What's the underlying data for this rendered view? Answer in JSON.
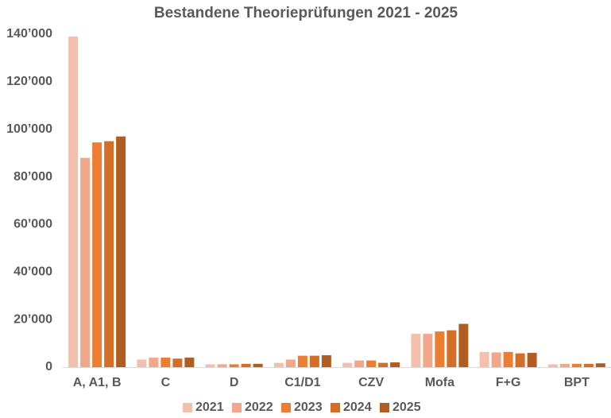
{
  "chart_data": {
    "type": "bar",
    "title": "Bestandene Theorieprüfungen 2021 - 2025",
    "categories": [
      "A, A1, B",
      "C",
      "D",
      "C1/D1",
      "CZV",
      "Mofa",
      "F+G",
      "BPT"
    ],
    "series": [
      {
        "name": "2021",
        "color": "#f4c0ae",
        "values": [
          139000,
          3200,
          1200,
          1800,
          1800,
          14000,
          6400,
          1200
        ]
      },
      {
        "name": "2022",
        "color": "#f0a78a",
        "values": [
          88000,
          4000,
          1200,
          3200,
          2800,
          14000,
          6200,
          1400
        ]
      },
      {
        "name": "2023",
        "color": "#ed7d31",
        "values": [
          94500,
          4000,
          1200,
          4800,
          2800,
          15000,
          6400,
          1400
        ]
      },
      {
        "name": "2024",
        "color": "#d46e27",
        "values": [
          95000,
          3600,
          1400,
          4800,
          1800,
          15500,
          5800,
          1400
        ]
      },
      {
        "name": "2025",
        "color": "#b05d21",
        "values": [
          97000,
          4000,
          1400,
          5000,
          2000,
          18200,
          6000,
          1600
        ]
      }
    ],
    "ylim": [
      0,
      140000
    ],
    "yticks": [
      0,
      {
        "value": 20000,
        "label": "20’000"
      },
      {
        "value": 40000,
        "label": "40’000"
      },
      {
        "value": 60000,
        "label": "60’000"
      },
      {
        "value": 80000,
        "label": "80’000"
      },
      {
        "value": 100000,
        "label": "100’000"
      },
      {
        "value": 120000,
        "label": "120’000"
      },
      {
        "value": 140000,
        "label": "140’000"
      }
    ],
    "grid": false,
    "legend": "bottom"
  }
}
